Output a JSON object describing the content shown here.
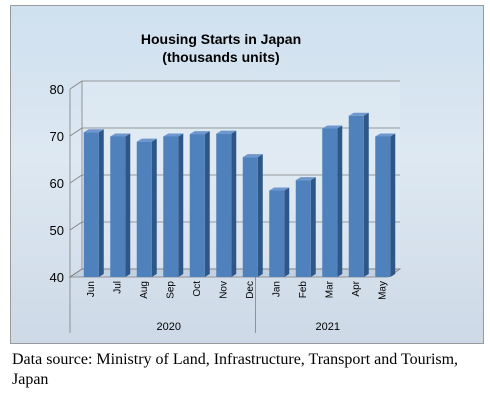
{
  "chart_data": {
    "type": "bar",
    "title_lines": [
      "Housing Starts in Japan",
      "(thousands units)"
    ],
    "categories": [
      "Jun",
      "Jul",
      "Aug",
      "Sep",
      "Oct",
      "Nov",
      "Dec",
      "Jan",
      "Feb",
      "Mar",
      "Apr",
      "May"
    ],
    "values": [
      70.8,
      69.9,
      68.8,
      69.9,
      70.4,
      70.5,
      65.5,
      58.4,
      60.6,
      71.6,
      74.3,
      69.9
    ],
    "groups": [
      {
        "label": "2020",
        "count": 7
      },
      {
        "label": "2021",
        "count": 5
      }
    ],
    "ylim": [
      40,
      80
    ],
    "yticks": [
      40,
      50,
      60,
      70,
      80
    ],
    "grid": true,
    "legend": "none",
    "colors": {
      "bar_front": "#4f81bd",
      "bar_side": "#2e5686",
      "bar_top": "#6e97cd",
      "background": "#d6e4f0"
    }
  },
  "source_note": "Data source: Ministry of Land, Infrastructure, Transport and Tourism, Japan"
}
